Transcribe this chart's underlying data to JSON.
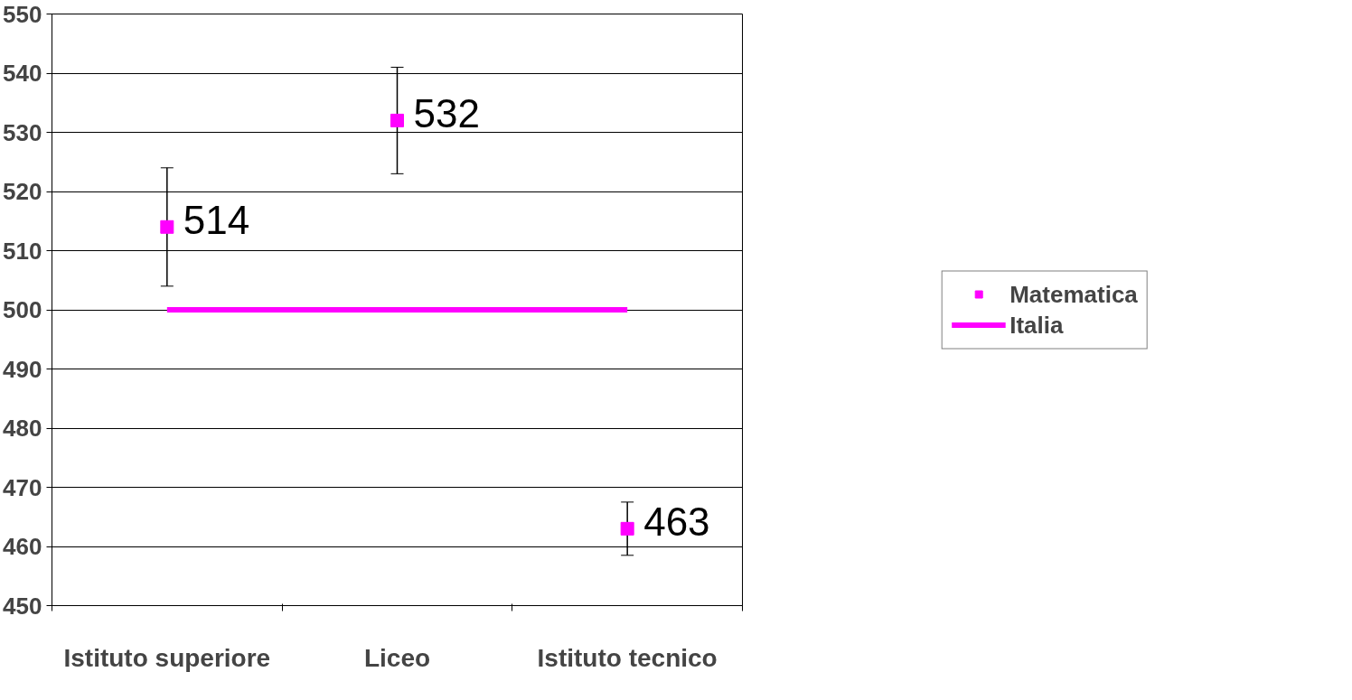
{
  "chart_data": {
    "type": "scatter",
    "categories": [
      "Istituto superiore",
      "Liceo",
      "Istituto tecnico"
    ],
    "series": [
      {
        "name": "Matematica",
        "color": "#ff00ff",
        "marker": "square",
        "values": [
          514,
          532,
          463
        ],
        "errors": [
          10,
          9,
          4.5
        ],
        "value_labels": [
          "514",
          "532",
          "463"
        ]
      },
      {
        "name": "Italia",
        "type": "line",
        "color": "#ff00ff",
        "marker": "none",
        "values": [
          500,
          500,
          500
        ]
      }
    ],
    "ylim": [
      450,
      550
    ],
    "yticks": [
      450,
      460,
      470,
      480,
      490,
      500,
      510,
      520,
      530,
      540,
      550
    ],
    "grid": "y",
    "legend": "right"
  }
}
